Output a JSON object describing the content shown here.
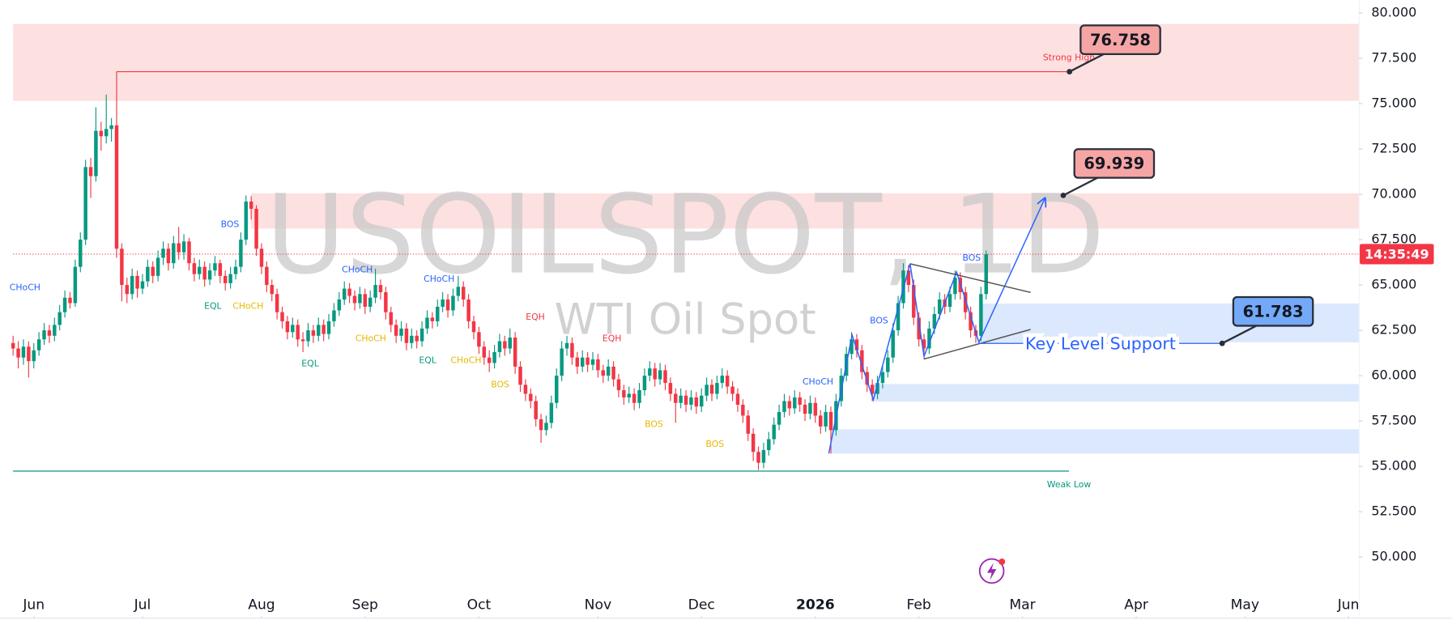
{
  "chart_data": {
    "type": "candlestick",
    "title": "USOILSPOT, 1D",
    "subtitle": "WTI Oil Spot",
    "up_color": "#089981",
    "down_color": "#f23645",
    "xlim": [
      0,
      260
    ],
    "ylim": [
      48.06,
      80.71
    ],
    "yticks": [
      {
        "value": 50,
        "label": "50.000"
      },
      {
        "value": 52.5,
        "label": "52.500"
      },
      {
        "value": 55,
        "label": "55.000"
      },
      {
        "value": 57.5,
        "label": "57.500"
      },
      {
        "value": 60,
        "label": "60.000"
      },
      {
        "value": 62.5,
        "label": "62.500"
      },
      {
        "value": 65,
        "label": "65.000"
      },
      {
        "value": 67.5,
        "label": "67.500"
      },
      {
        "value": 70,
        "label": "70.000"
      },
      {
        "value": 72.5,
        "label": "72.500"
      },
      {
        "value": 75,
        "label": "75.000"
      },
      {
        "value": 77.5,
        "label": "77.500"
      },
      {
        "value": 80,
        "label": "80.000"
      }
    ],
    "xticks": [
      {
        "value": 4,
        "label": "Jun"
      },
      {
        "value": 25,
        "label": "Jul"
      },
      {
        "value": 48,
        "label": "Aug"
      },
      {
        "value": 68,
        "label": "Sep"
      },
      {
        "value": 90,
        "label": "Oct"
      },
      {
        "value": 113,
        "label": "Nov"
      },
      {
        "value": 133,
        "label": "Dec"
      },
      {
        "value": 155,
        "label": "2026"
      },
      {
        "value": 175,
        "label": "Feb"
      },
      {
        "value": 195,
        "label": "Mar"
      },
      {
        "value": 217,
        "label": "Apr"
      },
      {
        "value": 238,
        "label": "May"
      },
      {
        "value": 258,
        "label": "Jun"
      }
    ],
    "ohlc": [
      [
        61.8,
        62.2,
        61.1,
        61.5
      ],
      [
        61.5,
        61.9,
        60.4,
        61.0
      ],
      [
        61.0,
        62.0,
        60.6,
        61.6
      ],
      [
        61.6,
        61.9,
        59.9,
        60.8
      ],
      [
        60.8,
        61.8,
        60.4,
        61.4
      ],
      [
        61.4,
        62.4,
        61.1,
        62.0
      ],
      [
        62.0,
        62.9,
        61.7,
        62.5
      ],
      [
        62.5,
        62.8,
        61.8,
        62.2
      ],
      [
        62.2,
        63.2,
        61.9,
        62.8
      ],
      [
        62.8,
        63.9,
        62.5,
        63.5
      ],
      [
        63.5,
        64.7,
        63.2,
        64.3
      ],
      [
        64.3,
        64.6,
        63.7,
        64.0
      ],
      [
        64.0,
        66.4,
        63.8,
        66.0
      ],
      [
        66.0,
        67.9,
        65.7,
        67.5
      ],
      [
        67.5,
        71.9,
        67.2,
        71.5
      ],
      [
        71.5,
        72.0,
        69.8,
        71.0
      ],
      [
        71.0,
        74.8,
        70.7,
        73.5
      ],
      [
        73.5,
        74.0,
        72.4,
        73.2
      ],
      [
        73.2,
        75.5,
        72.8,
        73.6
      ],
      [
        73.6,
        74.2,
        72.9,
        73.8
      ],
      [
        73.8,
        76.76,
        66.5,
        67.0
      ],
      [
        67.0,
        67.3,
        64.1,
        65.0
      ],
      [
        65.0,
        65.4,
        64.0,
        64.5
      ],
      [
        64.5,
        65.9,
        64.2,
        65.5
      ],
      [
        65.5,
        65.8,
        64.3,
        64.8
      ],
      [
        64.8,
        65.6,
        64.5,
        65.2
      ],
      [
        65.2,
        66.4,
        64.9,
        66.0
      ],
      [
        66.0,
        66.3,
        65.1,
        65.5
      ],
      [
        65.5,
        66.9,
        65.2,
        66.5
      ],
      [
        66.5,
        67.4,
        66.1,
        67.0
      ],
      [
        67.0,
        67.3,
        65.8,
        66.2
      ],
      [
        66.2,
        67.7,
        65.9,
        67.3
      ],
      [
        67.3,
        68.2,
        66.4,
        66.8
      ],
      [
        66.8,
        67.8,
        66.4,
        67.4
      ],
      [
        67.4,
        67.6,
        65.8,
        66.2
      ],
      [
        66.2,
        66.5,
        65.2,
        65.6
      ],
      [
        65.6,
        66.4,
        65.3,
        66.0
      ],
      [
        66.0,
        66.3,
        64.9,
        65.3
      ],
      [
        65.3,
        66.2,
        65.0,
        65.8
      ],
      [
        65.8,
        66.6,
        65.5,
        66.2
      ],
      [
        66.2,
        66.4,
        65.1,
        65.5
      ],
      [
        65.5,
        65.8,
        64.7,
        65.1
      ],
      [
        65.1,
        66.0,
        64.8,
        65.6
      ],
      [
        65.6,
        66.4,
        65.3,
        66.0
      ],
      [
        66.0,
        67.9,
        65.7,
        67.5
      ],
      [
        67.5,
        69.94,
        67.2,
        69.6
      ],
      [
        69.6,
        69.9,
        68.6,
        69.2
      ],
      [
        69.2,
        69.4,
        66.6,
        67.0
      ],
      [
        67.0,
        67.3,
        65.6,
        66.0
      ],
      [
        66.0,
        66.3,
        64.6,
        65.0
      ],
      [
        65.0,
        65.3,
        64.1,
        64.5
      ],
      [
        64.5,
        64.8,
        63.1,
        63.5
      ],
      [
        63.5,
        63.8,
        62.6,
        63.0
      ],
      [
        63.0,
        63.3,
        62.0,
        62.4
      ],
      [
        62.4,
        63.2,
        62.1,
        62.8
      ],
      [
        62.8,
        63.1,
        61.6,
        62.0
      ],
      [
        62.0,
        62.4,
        61.3,
        61.9
      ],
      [
        61.9,
        62.9,
        61.6,
        62.5
      ],
      [
        62.5,
        62.8,
        61.8,
        62.2
      ],
      [
        62.2,
        63.2,
        61.9,
        62.8
      ],
      [
        62.8,
        63.1,
        61.9,
        62.3
      ],
      [
        62.3,
        63.4,
        62.0,
        63.0
      ],
      [
        63.0,
        64.0,
        62.7,
        63.6
      ],
      [
        63.6,
        64.6,
        63.3,
        64.2
      ],
      [
        64.2,
        65.2,
        63.9,
        64.8
      ],
      [
        64.8,
        65.1,
        64.0,
        64.4
      ],
      [
        64.4,
        64.7,
        63.6,
        64.0
      ],
      [
        64.0,
        64.9,
        63.7,
        64.5
      ],
      [
        64.5,
        64.8,
        63.4,
        63.8
      ],
      [
        63.8,
        64.7,
        63.5,
        64.3
      ],
      [
        64.3,
        65.9,
        64.0,
        65.0
      ],
      [
        65.0,
        65.3,
        64.2,
        64.6
      ],
      [
        64.6,
        64.9,
        63.1,
        63.5
      ],
      [
        63.5,
        63.8,
        62.4,
        62.8
      ],
      [
        62.8,
        63.1,
        61.8,
        62.2
      ],
      [
        62.2,
        63.0,
        61.9,
        62.6
      ],
      [
        62.6,
        62.9,
        61.4,
        61.8
      ],
      [
        61.8,
        62.6,
        61.5,
        62.2
      ],
      [
        62.2,
        62.5,
        61.5,
        61.9
      ],
      [
        61.9,
        63.0,
        61.6,
        62.6
      ],
      [
        62.6,
        63.6,
        62.3,
        63.2
      ],
      [
        63.2,
        63.5,
        62.6,
        63.0
      ],
      [
        63.0,
        64.2,
        62.7,
        63.8
      ],
      [
        63.8,
        64.6,
        63.5,
        64.2
      ],
      [
        64.2,
        64.5,
        63.2,
        63.6
      ],
      [
        63.6,
        64.8,
        63.3,
        64.4
      ],
      [
        64.4,
        65.5,
        64.1,
        64.9
      ],
      [
        64.9,
        65.2,
        63.8,
        64.2
      ],
      [
        64.2,
        64.5,
        62.6,
        63.0
      ],
      [
        63.0,
        63.3,
        62.0,
        62.4
      ],
      [
        62.4,
        62.7,
        61.2,
        61.6
      ],
      [
        61.6,
        61.9,
        60.6,
        61.0
      ],
      [
        61.0,
        61.4,
        60.2,
        60.7
      ],
      [
        60.7,
        61.7,
        60.4,
        61.3
      ],
      [
        61.3,
        62.3,
        61.0,
        61.9
      ],
      [
        61.9,
        62.2,
        61.1,
        61.5
      ],
      [
        61.5,
        62.6,
        61.2,
        62.1
      ],
      [
        62.1,
        62.4,
        60.1,
        60.5
      ],
      [
        60.5,
        60.8,
        59.1,
        59.5
      ],
      [
        59.5,
        59.8,
        58.6,
        59.0
      ],
      [
        59.0,
        59.3,
        58.2,
        58.6
      ],
      [
        58.6,
        58.9,
        57.2,
        57.6
      ],
      [
        57.6,
        57.9,
        56.3,
        57.0
      ],
      [
        57.0,
        57.8,
        56.7,
        57.4
      ],
      [
        57.4,
        58.9,
        57.1,
        58.5
      ],
      [
        58.5,
        60.4,
        58.2,
        60.0
      ],
      [
        60.0,
        61.9,
        59.7,
        61.5
      ],
      [
        61.5,
        62.2,
        61.1,
        61.8
      ],
      [
        61.8,
        62.1,
        60.6,
        61.0
      ],
      [
        61.0,
        61.3,
        60.1,
        60.5
      ],
      [
        60.5,
        61.4,
        60.2,
        61.0
      ],
      [
        61.0,
        61.3,
        60.2,
        60.6
      ],
      [
        60.6,
        61.3,
        60.3,
        60.9
      ],
      [
        60.9,
        61.2,
        59.9,
        60.3
      ],
      [
        60.3,
        60.6,
        59.6,
        60.0
      ],
      [
        60.0,
        60.9,
        59.7,
        60.5
      ],
      [
        60.5,
        60.8,
        59.4,
        59.8
      ],
      [
        59.8,
        60.1,
        58.8,
        59.2
      ],
      [
        59.2,
        59.5,
        58.4,
        58.8
      ],
      [
        58.8,
        59.4,
        58.5,
        59.0
      ],
      [
        59.0,
        59.3,
        58.1,
        58.5
      ],
      [
        58.5,
        59.6,
        58.2,
        59.2
      ],
      [
        59.2,
        60.4,
        58.9,
        60.0
      ],
      [
        60.0,
        60.8,
        59.7,
        60.4
      ],
      [
        60.4,
        60.7,
        59.4,
        59.8
      ],
      [
        59.8,
        60.7,
        59.5,
        60.3
      ],
      [
        60.3,
        60.6,
        59.2,
        59.6
      ],
      [
        59.6,
        59.9,
        58.6,
        59.0
      ],
      [
        59.0,
        59.3,
        57.4,
        58.5
      ],
      [
        58.5,
        59.3,
        58.2,
        58.9
      ],
      [
        58.9,
        59.2,
        58.0,
        58.4
      ],
      [
        58.4,
        59.2,
        58.1,
        58.8
      ],
      [
        58.8,
        59.1,
        57.9,
        58.3
      ],
      [
        58.3,
        59.3,
        58.0,
        58.9
      ],
      [
        58.9,
        59.9,
        58.6,
        59.5
      ],
      [
        59.5,
        59.8,
        58.6,
        59.0
      ],
      [
        59.0,
        60.0,
        58.7,
        59.6
      ],
      [
        59.6,
        60.4,
        59.3,
        60.0
      ],
      [
        60.0,
        60.3,
        59.0,
        59.4
      ],
      [
        59.4,
        59.7,
        58.6,
        59.0
      ],
      [
        59.0,
        59.3,
        58.0,
        58.4
      ],
      [
        58.4,
        58.7,
        57.4,
        57.8
      ],
      [
        57.8,
        58.1,
        56.4,
        56.8
      ],
      [
        56.8,
        57.1,
        55.3,
        55.8
      ],
      [
        55.8,
        56.1,
        54.8,
        55.2
      ],
      [
        55.2,
        56.3,
        54.9,
        55.9
      ],
      [
        55.9,
        56.9,
        55.6,
        56.5
      ],
      [
        56.5,
        57.7,
        56.2,
        57.3
      ],
      [
        57.3,
        58.4,
        57.0,
        58.0
      ],
      [
        58.0,
        59.0,
        57.7,
        58.6
      ],
      [
        58.6,
        58.9,
        57.8,
        58.2
      ],
      [
        58.2,
        59.2,
        57.9,
        58.8
      ],
      [
        58.8,
        59.1,
        58.0,
        58.4
      ],
      [
        58.4,
        58.7,
        57.5,
        57.9
      ],
      [
        57.9,
        58.9,
        57.6,
        58.5
      ],
      [
        58.5,
        58.8,
        57.4,
        57.8
      ],
      [
        57.8,
        58.1,
        56.8,
        57.2
      ],
      [
        57.2,
        58.4,
        56.9,
        58.0
      ],
      [
        58.0,
        58.3,
        55.7,
        57.0
      ],
      [
        57.0,
        59.0,
        56.7,
        58.6
      ],
      [
        58.6,
        60.4,
        58.3,
        60.0
      ],
      [
        60.0,
        61.6,
        59.7,
        61.2
      ],
      [
        61.2,
        62.4,
        60.9,
        62.0
      ],
      [
        62.0,
        62.3,
        61.0,
        61.4
      ],
      [
        61.4,
        61.7,
        59.8,
        60.2
      ],
      [
        60.2,
        60.5,
        59.1,
        59.5
      ],
      [
        59.5,
        59.8,
        58.6,
        59.0
      ],
      [
        59.0,
        60.0,
        58.7,
        59.6
      ],
      [
        59.6,
        60.6,
        59.3,
        60.2
      ],
      [
        60.2,
        61.4,
        59.9,
        61.0
      ],
      [
        61.0,
        62.9,
        60.7,
        62.5
      ],
      [
        62.5,
        64.4,
        62.2,
        64.0
      ],
      [
        64.0,
        66.2,
        63.7,
        65.8
      ],
      [
        65.8,
        66.1,
        64.6,
        65.0
      ],
      [
        65.0,
        65.3,
        62.8,
        63.2
      ],
      [
        63.2,
        63.5,
        61.6,
        62.0
      ],
      [
        62.0,
        62.3,
        60.9,
        61.5
      ],
      [
        61.5,
        63.0,
        61.2,
        62.6
      ],
      [
        62.6,
        63.8,
        62.3,
        63.4
      ],
      [
        63.4,
        64.6,
        63.1,
        64.2
      ],
      [
        64.2,
        64.5,
        63.4,
        63.8
      ],
      [
        63.8,
        64.9,
        63.5,
        64.5
      ],
      [
        64.5,
        65.8,
        64.2,
        65.4
      ],
      [
        65.4,
        65.7,
        64.2,
        64.6
      ],
      [
        64.6,
        64.9,
        63.1,
        63.5
      ],
      [
        63.5,
        63.8,
        62.1,
        62.5
      ],
      [
        62.5,
        62.8,
        61.8,
        62.2
      ],
      [
        62.2,
        64.9,
        61.9,
        64.5
      ],
      [
        64.5,
        66.9,
        64.2,
        66.7
      ]
    ],
    "last_price": 66.7,
    "countdown": "14:35:49",
    "countdown_color": "#f23645",
    "zones": [
      {
        "from": 0,
        "low": 75.15,
        "high": 79.39,
        "color": "#fde0e0"
      },
      {
        "from": 46,
        "low": 68.11,
        "high": 70.05,
        "color": "#fde0e0"
      },
      {
        "from": 187,
        "low": 61.84,
        "high": 63.98,
        "color": "#dbe8fd"
      },
      {
        "from": 166,
        "low": 58.57,
        "high": 59.54,
        "color": "#dbe8fd"
      },
      {
        "from": 158,
        "low": 55.71,
        "high": 57.04,
        "color": "#dbe8fd"
      }
    ],
    "levels": [
      {
        "label": "Strong High",
        "value": 76.758,
        "from": 20,
        "to": 204,
        "color": "#f23645"
      },
      {
        "label": "Weak Low",
        "value": 54.74,
        "from": 0,
        "to": 204,
        "color": "#089981"
      }
    ],
    "markers": [
      {
        "text": "CHoCH",
        "x": 2.3,
        "y": 64.85,
        "color": "#2962ff"
      },
      {
        "text": "BOS",
        "x": 41.9,
        "y": 68.32,
        "color": "#2962ff"
      },
      {
        "text": "EQL",
        "x": 38.6,
        "y": 63.83,
        "color": "#089981"
      },
      {
        "text": "CHoCH",
        "x": 45.4,
        "y": 63.83,
        "color": "#e6b800"
      },
      {
        "text": "CHoCH",
        "x": 66.5,
        "y": 65.82,
        "color": "#2962ff"
      },
      {
        "text": "EQL",
        "x": 57.4,
        "y": 60.66,
        "color": "#089981"
      },
      {
        "text": "CHoCH",
        "x": 69.1,
        "y": 62.04,
        "color": "#e6b800"
      },
      {
        "text": "CHoCH",
        "x": 82.3,
        "y": 65.31,
        "color": "#2962ff"
      },
      {
        "text": "EQL",
        "x": 80.1,
        "y": 60.82,
        "color": "#089981"
      },
      {
        "text": "CHoCH",
        "x": 87.5,
        "y": 60.82,
        "color": "#e6b800"
      },
      {
        "text": "EQH",
        "x": 100.9,
        "y": 63.21,
        "color": "#f23645"
      },
      {
        "text": "BOS",
        "x": 94.1,
        "y": 59.49,
        "color": "#e6b800"
      },
      {
        "text": "EQH",
        "x": 115.7,
        "y": 62.04,
        "color": "#f23645"
      },
      {
        "text": "BOS",
        "x": 123.8,
        "y": 57.3,
        "color": "#e6b800"
      },
      {
        "text": "BOS",
        "x": 135.6,
        "y": 56.22,
        "color": "#e6b800"
      },
      {
        "text": "CHoCH",
        "x": 155.5,
        "y": 59.64,
        "color": "#2962ff"
      },
      {
        "text": "BOS",
        "x": 167.3,
        "y": 63.01,
        "color": "#2962ff"
      },
      {
        "text": "BOS",
        "x": 185.2,
        "y": 66.48,
        "color": "#2962ff"
      }
    ],
    "drawings": [
      {
        "color": "#2962ff",
        "arrow": true,
        "x": [
          157.6,
          162.1,
          166.2,
          173.3,
          176.0,
          182.3,
          186.6,
          199.3
        ],
        "y": [
          55.71,
          62.24,
          58.67,
          66.17,
          61.07,
          65.71,
          61.84,
          69.74
        ]
      },
      {
        "color": "#555555",
        "arrow": false,
        "x": [
          173.3,
          196.6
        ],
        "y": [
          66.17,
          64.59
        ]
      },
      {
        "color": "#555555",
        "arrow": false,
        "x": [
          176.0,
          196.6
        ],
        "y": [
          60.92,
          62.55
        ]
      }
    ],
    "callouts": [
      {
        "value": 76.758,
        "x": 204.1,
        "color": "#f6a5a5"
      },
      {
        "value": 69.939,
        "x": 202.9,
        "color": "#f6a5a5"
      },
      {
        "value": 61.783,
        "x": 233.6,
        "color": "#74a9f7",
        "line_from": 186.6,
        "line_text": "Key Level Support"
      }
    ]
  }
}
